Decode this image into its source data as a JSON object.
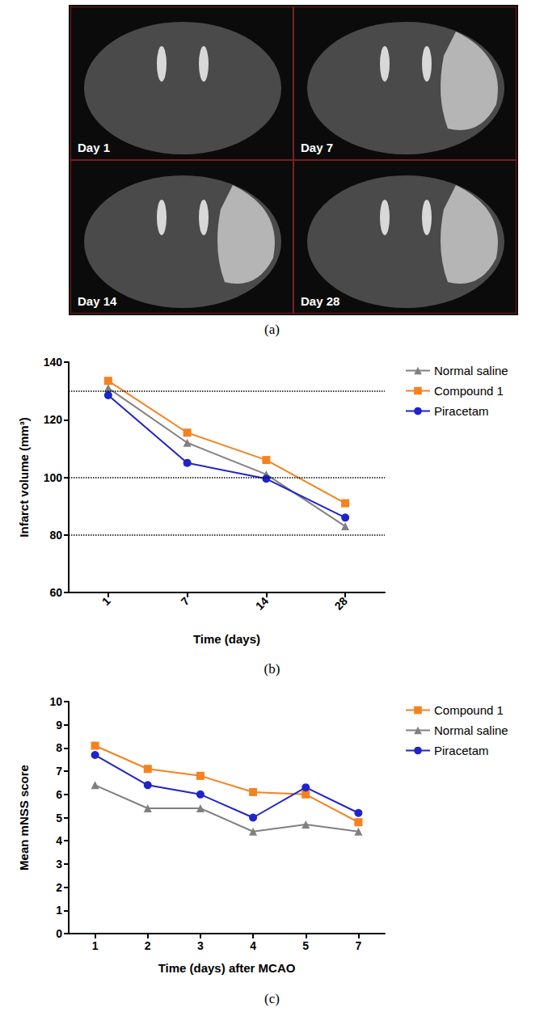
{
  "images": {
    "caption": "(a)",
    "labels": [
      "Day 1",
      "Day 7",
      "Day 14",
      "Day 28"
    ]
  },
  "chart_data": [
    {
      "type": "line",
      "caption": "(b)",
      "x_label": "Time (days)",
      "y_label": "Infarct volume (mm³)",
      "categories": [
        "1",
        "7",
        "14",
        "28"
      ],
      "ylim": [
        60,
        140
      ],
      "yticks": [
        60,
        80,
        100,
        120,
        140
      ],
      "reference_lines": [
        80,
        100,
        130
      ],
      "grid": false,
      "legend": "right",
      "series": [
        {
          "name": "Normal saline",
          "color": "#808080",
          "marker": "triangle",
          "values": [
            131,
            112,
            101,
            83
          ]
        },
        {
          "name": "Compound 1",
          "color": "#f5821f",
          "marker": "square",
          "values": [
            133.5,
            115.5,
            106,
            91
          ]
        },
        {
          "name": "Piracetam",
          "color": "#1f24c8",
          "marker": "circle",
          "values": [
            128.5,
            105,
            99.5,
            86
          ]
        }
      ]
    },
    {
      "type": "line",
      "caption": "(c)",
      "x_label": "Time (days) after MCAO",
      "y_label": "Mean mNSS score",
      "categories": [
        "1",
        "2",
        "3",
        "4",
        "5",
        "7"
      ],
      "ylim": [
        0,
        10
      ],
      "yticks": [
        0,
        1,
        2,
        3,
        4,
        5,
        6,
        7,
        8,
        9,
        10
      ],
      "grid": false,
      "legend": "right",
      "series": [
        {
          "name": "Compound 1",
          "color": "#f5821f",
          "marker": "square",
          "values": [
            8.1,
            7.1,
            6.8,
            6.1,
            6.0,
            4.8
          ]
        },
        {
          "name": "Normal saline",
          "color": "#808080",
          "marker": "triangle",
          "values": [
            6.4,
            5.4,
            5.4,
            4.4,
            4.7,
            4.4
          ]
        },
        {
          "name": "Piracetam",
          "color": "#1f24c8",
          "marker": "circle",
          "values": [
            7.7,
            6.4,
            6.0,
            5.0,
            6.3,
            5.2
          ]
        }
      ]
    }
  ]
}
